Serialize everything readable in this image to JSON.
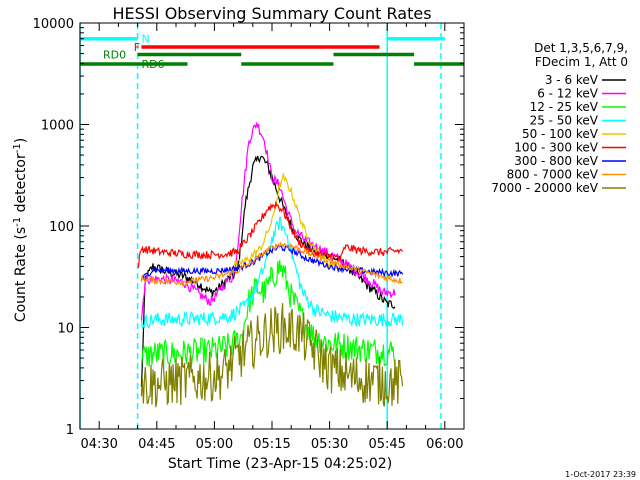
{
  "footer_date": "1-Oct-2017 23:39",
  "chart_data": {
    "type": "line",
    "title": "HESSI Observing Summary Count Rates",
    "xlabel": "Start Time (23-Apr-15 04:25:02)",
    "ylabel": "Count Rate (s⁻¹ detector⁻¹)",
    "ylabel_main": "Count Rate (s",
    "ylabel_exp1": "-1",
    "ylabel_mid": " detector",
    "ylabel_exp2": "-1",
    "ylabel_end": ")",
    "yscale": "log",
    "xlim": [
      "04:25",
      "06:05"
    ],
    "ylim": [
      1,
      10000
    ],
    "x_ticks": [
      "04:30",
      "04:45",
      "05:00",
      "05:15",
      "05:30",
      "05:45",
      "06:00"
    ],
    "x_minor_step_minutes": 5,
    "y_ticks": [
      {
        "value": 1,
        "label": "1"
      },
      {
        "value": 10,
        "label": "10"
      },
      {
        "value": 100,
        "label": "100"
      },
      {
        "value": 1000,
        "label": "1000"
      },
      {
        "value": 10000,
        "label": "10000"
      }
    ],
    "legend": {
      "position": "right",
      "header": [
        "Det 1,3,5,6,7,9,",
        "FDecim 1, Att 0"
      ],
      "entries": [
        {
          "label": "3 - 6 keV",
          "color": "#000000"
        },
        {
          "label": "6 - 12 keV",
          "color": "#ff00ff"
        },
        {
          "label": "12 - 25 keV",
          "color": "#00ff00"
        },
        {
          "label": "25 - 50 keV",
          "color": "#00ffff"
        },
        {
          "label": "50 - 100 keV",
          "color": "#e6c800"
        },
        {
          "label": "100 - 300 keV",
          "color": "#ff0000"
        },
        {
          "label": "300 - 800 keV",
          "color": "#0000ff"
        },
        {
          "label": "800 - 7000 keV",
          "color": "#ff8c00"
        },
        {
          "label": "7000 - 20000 keV",
          "color": "#808000"
        }
      ]
    },
    "flag_bars": [
      {
        "label": "N",
        "color": "#00ffff",
        "y": 7000,
        "segments": [
          [
            "04:25",
            "04:40"
          ],
          [
            "05:45",
            "06:00"
          ]
        ],
        "label_at": "04:41"
      },
      {
        "label": "F",
        "color": "#ff0000",
        "y": 5800,
        "segments": [
          [
            "04:41",
            "05:43"
          ]
        ],
        "label_at": "04:39"
      },
      {
        "label": "RD0",
        "color": "#008000",
        "y": 4900,
        "segments": [
          [
            "04:40",
            "05:07"
          ],
          [
            "05:31",
            "05:52"
          ]
        ],
        "label_at": "04:31"
      },
      {
        "label": "RD6",
        "color": "#008000",
        "y": 3950,
        "segments": [
          [
            "04:25",
            "04:53"
          ],
          [
            "05:07",
            "05:31"
          ],
          [
            "05:52",
            "06:05"
          ]
        ],
        "label_at": "04:41"
      }
    ],
    "vlines": [
      {
        "x": "04:25",
        "color": "#00ffff",
        "style": "solid"
      },
      {
        "x": "04:40",
        "color": "#00ffff",
        "style": "dashed"
      },
      {
        "x": "05:45",
        "color": "#00ffff",
        "style": "solid"
      },
      {
        "x": "05:59",
        "color": "#00ffff",
        "style": "dashed"
      }
    ],
    "series": [
      {
        "name": "3 - 6 keV",
        "color": "#000000",
        "noise": 0.05,
        "start": "04:41",
        "end": "05:47",
        "points": [
          [
            "04:41",
            2.5
          ],
          [
            "04:42",
            30
          ],
          [
            "04:44",
            40
          ],
          [
            "04:47",
            36
          ],
          [
            "04:52",
            32
          ],
          [
            "04:56",
            27
          ],
          [
            "04:59",
            22
          ],
          [
            "05:01",
            24
          ],
          [
            "05:03",
            29
          ],
          [
            "05:05",
            33
          ],
          [
            "05:06",
            36
          ],
          [
            "05:07",
            70
          ],
          [
            "05:08",
            160
          ],
          [
            "05:10",
            380
          ],
          [
            "05:12",
            500
          ],
          [
            "05:14",
            380
          ],
          [
            "05:16",
            240
          ],
          [
            "05:18",
            150
          ],
          [
            "05:20",
            100
          ],
          [
            "05:22",
            75
          ],
          [
            "05:25",
            60
          ],
          [
            "05:30",
            52
          ],
          [
            "05:34",
            42
          ],
          [
            "05:38",
            30
          ],
          [
            "05:42",
            22
          ],
          [
            "05:45",
            17
          ]
        ]
      },
      {
        "name": "6 - 12 keV",
        "color": "#ff00ff",
        "noise": 0.05,
        "start": "04:41",
        "end": "05:47",
        "points": [
          [
            "04:41",
            12
          ],
          [
            "04:42",
            30
          ],
          [
            "04:46",
            30
          ],
          [
            "04:52",
            28
          ],
          [
            "04:57",
            20
          ],
          [
            "04:59",
            18
          ],
          [
            "05:01",
            22
          ],
          [
            "05:03",
            28
          ],
          [
            "05:05",
            32
          ],
          [
            "05:06",
            60
          ],
          [
            "05:07",
            150
          ],
          [
            "05:09",
            700
          ],
          [
            "05:11",
            1050
          ],
          [
            "05:13",
            700
          ],
          [
            "05:15",
            300
          ],
          [
            "05:17",
            250
          ],
          [
            "05:19",
            140
          ],
          [
            "05:21",
            90
          ],
          [
            "05:24",
            70
          ],
          [
            "05:28",
            58
          ],
          [
            "05:32",
            48
          ],
          [
            "05:36",
            38
          ],
          [
            "05:40",
            30
          ],
          [
            "05:44",
            22
          ]
        ]
      },
      {
        "name": "12 - 25 keV",
        "color": "#00ff00",
        "noise": 0.14,
        "start": "04:41",
        "end": "05:47",
        "points": [
          [
            "04:41",
            5
          ],
          [
            "04:44",
            5.5
          ],
          [
            "04:50",
            5.5
          ],
          [
            "04:58",
            5.8
          ],
          [
            "05:04",
            6.5
          ],
          [
            "05:07",
            8
          ],
          [
            "05:09",
            18
          ],
          [
            "05:11",
            25
          ],
          [
            "05:13",
            22
          ],
          [
            "05:15",
            30
          ],
          [
            "05:17",
            40
          ],
          [
            "05:18",
            35
          ],
          [
            "05:20",
            20
          ],
          [
            "05:23",
            12
          ],
          [
            "05:26",
            8
          ],
          [
            "05:30",
            7
          ],
          [
            "05:35",
            6.5
          ],
          [
            "05:40",
            6
          ],
          [
            "05:45",
            5.8
          ]
        ]
      },
      {
        "name": "25 - 50 keV",
        "color": "#00ffff",
        "noise": 0.07,
        "start": "04:41",
        "end": "05:49",
        "points": [
          [
            "04:41",
            11
          ],
          [
            "04:44",
            12
          ],
          [
            "04:50",
            12
          ],
          [
            "04:58",
            12.3
          ],
          [
            "05:04",
            13
          ],
          [
            "05:08",
            16
          ],
          [
            "05:11",
            25
          ],
          [
            "05:13",
            40
          ],
          [
            "05:15",
            75
          ],
          [
            "05:17",
            110
          ],
          [
            "05:19",
            80
          ],
          [
            "05:21",
            40
          ],
          [
            "05:23",
            22
          ],
          [
            "05:26",
            15
          ],
          [
            "05:30",
            13
          ],
          [
            "05:36",
            12
          ],
          [
            "05:42",
            12
          ],
          [
            "05:48",
            12
          ]
        ]
      },
      {
        "name": "50 - 100 keV",
        "color": "#e6c800",
        "noise": 0.04,
        "start": "05:04",
        "end": "05:33",
        "points": [
          [
            "05:04",
            40
          ],
          [
            "05:08",
            45
          ],
          [
            "05:12",
            60
          ],
          [
            "05:15",
            110
          ],
          [
            "05:17",
            250
          ],
          [
            "05:18",
            300
          ],
          [
            "05:20",
            220
          ],
          [
            "05:22",
            130
          ],
          [
            "05:24",
            80
          ],
          [
            "05:27",
            55
          ],
          [
            "05:30",
            42
          ],
          [
            "05:32",
            38
          ]
        ]
      },
      {
        "name": "100 - 300 keV",
        "color": "#ff0000",
        "noise": 0.04,
        "start": "04:40",
        "end": "05:49",
        "points": [
          [
            "04:40",
            38
          ],
          [
            "04:41",
            60
          ],
          [
            "04:45",
            56
          ],
          [
            "04:52",
            53
          ],
          [
            "04:58",
            52
          ],
          [
            "05:03",
            53
          ],
          [
            "05:06",
            56
          ],
          [
            "05:08",
            70
          ],
          [
            "05:11",
            100
          ],
          [
            "05:14",
            150
          ],
          [
            "05:16",
            165
          ],
          [
            "05:18",
            140
          ],
          [
            "05:20",
            95
          ],
          [
            "05:22",
            70
          ],
          [
            "05:25",
            55
          ],
          [
            "05:30",
            50
          ],
          [
            "05:33",
            48
          ],
          [
            "05:34",
            62
          ],
          [
            "05:38",
            57
          ],
          [
            "05:44",
            55
          ],
          [
            "05:48",
            57
          ]
        ]
      },
      {
        "name": "300 - 800 keV",
        "color": "#0000ff",
        "noise": 0.03,
        "start": "04:41",
        "end": "05:49",
        "points": [
          [
            "04:41",
            30
          ],
          [
            "04:44",
            37
          ],
          [
            "04:52",
            36
          ],
          [
            "05:00",
            36
          ],
          [
            "05:06",
            38
          ],
          [
            "05:10",
            44
          ],
          [
            "05:14",
            55
          ],
          [
            "05:17",
            62
          ],
          [
            "05:20",
            58
          ],
          [
            "05:24",
            48
          ],
          [
            "05:30",
            40
          ],
          [
            "05:36",
            37
          ],
          [
            "05:42",
            35
          ],
          [
            "05:48",
            34
          ]
        ]
      },
      {
        "name": "800 - 7000 keV",
        "color": "#ff8c00",
        "noise": 0.03,
        "start": "04:41",
        "end": "05:49",
        "points": [
          [
            "04:41",
            30
          ],
          [
            "04:45",
            29
          ],
          [
            "04:52",
            28
          ],
          [
            "05:00",
            31
          ],
          [
            "05:06",
            36
          ],
          [
            "05:10",
            45
          ],
          [
            "05:14",
            58
          ],
          [
            "05:17",
            66
          ],
          [
            "05:20",
            64
          ],
          [
            "05:24",
            55
          ],
          [
            "05:30",
            45
          ],
          [
            "05:36",
            38
          ],
          [
            "05:42",
            33
          ],
          [
            "05:48",
            29
          ]
        ]
      },
      {
        "name": "7000 - 20000 keV",
        "color": "#808000",
        "noise": 0.25,
        "start": "04:41",
        "end": "05:49",
        "points": [
          [
            "04:41",
            2.8
          ],
          [
            "04:46",
            2.8
          ],
          [
            "04:52",
            3
          ],
          [
            "04:58",
            3.2
          ],
          [
            "05:02",
            3.5
          ],
          [
            "05:06",
            5
          ],
          [
            "05:10",
            7
          ],
          [
            "05:14",
            9
          ],
          [
            "05:18",
            10
          ],
          [
            "05:22",
            9
          ],
          [
            "05:26",
            6
          ],
          [
            "05:30",
            4
          ],
          [
            "05:36",
            3.2
          ],
          [
            "05:42",
            3
          ],
          [
            "05:48",
            2.8
          ]
        ]
      }
    ]
  }
}
